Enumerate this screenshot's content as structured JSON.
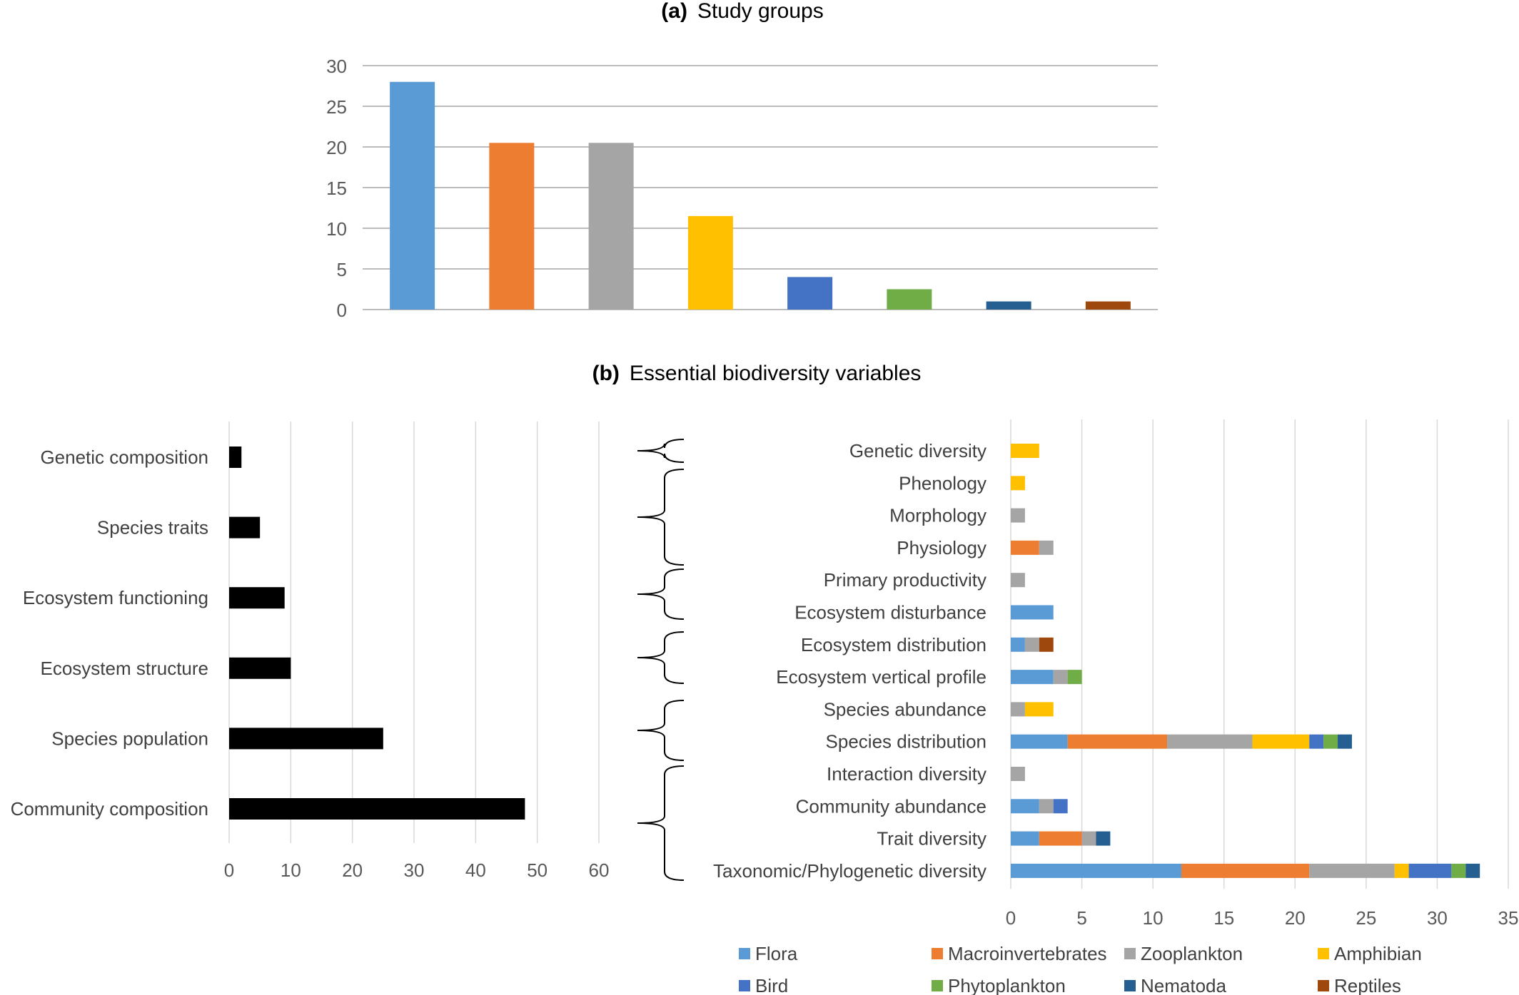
{
  "chart_data": [
    {
      "type": "bar",
      "panel": "(a)",
      "title": "Study groups",
      "categories": [
        "Flora",
        "Macroinvertebrates",
        "Zooplankton",
        "Amphibian",
        "Bird",
        "Phytoplankton",
        "Nematoda",
        "Reptiles"
      ],
      "values": [
        28,
        20.5,
        20.5,
        11.5,
        4,
        2.5,
        1,
        1
      ],
      "colors": [
        "#5b9bd5",
        "#ed7d31",
        "#a5a5a5",
        "#ffc000",
        "#4472c4",
        "#70ad47",
        "#255e91",
        "#9e480e"
      ],
      "ylim": [
        0,
        30
      ],
      "yticks": [
        "0",
        "5",
        "10",
        "15",
        "20",
        "25",
        "30"
      ],
      "grid": true
    },
    {
      "type": "bar",
      "orientation": "horizontal",
      "panel": "(b)",
      "title": "Essential biodiversity variables",
      "categories": [
        "Genetic composition",
        "Species traits",
        "Ecosystem functioning",
        "Ecosystem structure",
        "Species population",
        "Community composition"
      ],
      "values": [
        2,
        5,
        9,
        10,
        25,
        48
      ],
      "color": "#000000",
      "xlim": [
        0,
        60
      ],
      "xticks": [
        "0",
        "10",
        "20",
        "30",
        "40",
        "50",
        "60"
      ],
      "grid": true
    },
    {
      "type": "bar",
      "orientation": "horizontal",
      "stacked": true,
      "categories": [
        "Genetic diversity",
        "Phenology",
        "Morphology",
        "Physiology",
        "Primary productivity",
        "Ecosystem disturbance",
        "Ecosystem distribution",
        "Ecosystem vertical profile",
        "Species abundance",
        "Species distribution",
        "Interaction diversity",
        "Community abundance",
        "Trait diversity",
        "Taxonomic/Phylogenetic diversity"
      ],
      "series": [
        {
          "name": "Flora",
          "color": "#5b9bd5",
          "values": [
            0,
            0,
            0,
            0,
            0,
            3,
            1,
            3,
            0,
            4,
            0,
            2,
            2,
            12
          ]
        },
        {
          "name": "Macroinvertebrates",
          "color": "#ed7d31",
          "values": [
            0,
            0,
            0,
            2,
            0,
            0,
            0,
            0,
            0,
            7,
            0,
            0,
            3,
            9
          ]
        },
        {
          "name": "Zooplankton",
          "color": "#a5a5a5",
          "values": [
            0,
            0,
            1,
            1,
            1,
            0,
            1,
            1,
            1,
            6,
            1,
            1,
            1,
            6
          ]
        },
        {
          "name": "Amphibian",
          "color": "#ffc000",
          "values": [
            2,
            1,
            0,
            0,
            0,
            0,
            0,
            0,
            2,
            4,
            0,
            0,
            0,
            1
          ]
        },
        {
          "name": "Bird",
          "color": "#4472c4",
          "values": [
            0,
            0,
            0,
            0,
            0,
            0,
            0,
            0,
            0,
            1,
            0,
            1,
            0,
            3
          ]
        },
        {
          "name": "Phytoplankton",
          "color": "#70ad47",
          "values": [
            0,
            0,
            0,
            0,
            0,
            0,
            0,
            1,
            0,
            1,
            0,
            0,
            0,
            1
          ]
        },
        {
          "name": "Nematoda",
          "color": "#255e91",
          "values": [
            0,
            0,
            0,
            0,
            0,
            0,
            0,
            0,
            0,
            1,
            0,
            0,
            1,
            1
          ]
        },
        {
          "name": "Reptiles",
          "color": "#9e480e",
          "values": [
            0,
            0,
            0,
            0,
            0,
            0,
            1,
            0,
            0,
            0,
            0,
            0,
            0,
            0
          ]
        }
      ],
      "xlim": [
        0,
        35
      ],
      "xticks": [
        "0",
        "5",
        "10",
        "15",
        "20",
        "25",
        "30",
        "35"
      ],
      "grid": true,
      "legend": "bottom"
    }
  ]
}
